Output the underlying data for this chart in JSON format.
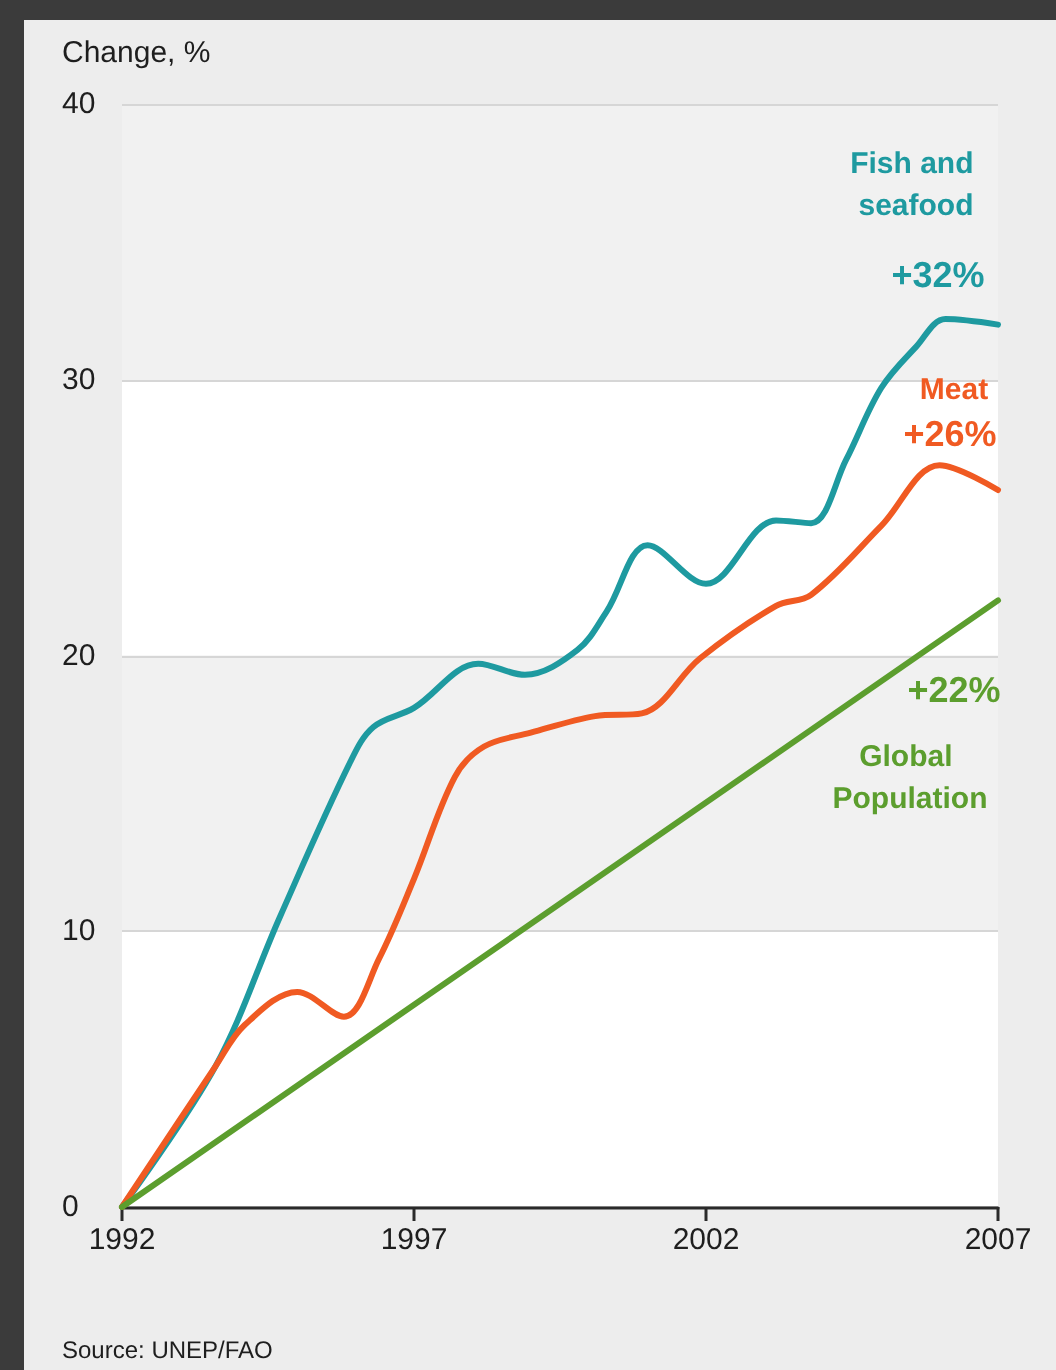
{
  "chart_data": {
    "type": "line",
    "ylabel": "Change, %",
    "xlim": [
      1992,
      2007
    ],
    "xticks": [
      1992,
      1997,
      2002,
      2007
    ],
    "ylim": [
      0,
      40
    ],
    "yticks": [
      0,
      10,
      20,
      30,
      40
    ],
    "grid": "y",
    "annotations": [
      "Source: UNEP/FAO"
    ],
    "series": [
      {
        "name": "Fish and seafood",
        "color": "#1e9aa0",
        "x": [
          1992,
          1993.6,
          1994.7,
          1995.9,
          1996.3,
          1997,
          1998.1,
          1998.9,
          1999.8,
          2000.3,
          2001,
          2002,
          2003.2,
          2003.8,
          2004.4,
          2005,
          2005.6,
          2006.1,
          2007
        ],
        "values": [
          0,
          5.1,
          10.5,
          16.1,
          17.4,
          18.1,
          19.7,
          19.3,
          20.2,
          21.6,
          24,
          22.6,
          24.9,
          24.8,
          27.1,
          29.7,
          31.2,
          32.2,
          32
        ],
        "value_labels": [
          null,
          null,
          null,
          null,
          null,
          null,
          null,
          null,
          null,
          null,
          null,
          null,
          null,
          null,
          null,
          null,
          null,
          null,
          "+32%"
        ]
      },
      {
        "name": "Meat",
        "color": "#f05a22",
        "x": [
          1992,
          1993.6,
          1994.1,
          1995,
          1995.8,
          1996.4,
          1997,
          1997.7,
          1998.2,
          1999,
          2000.1,
          2000.9,
          2001.9,
          2003.2,
          2003.8,
          2005,
          2006,
          2007
        ],
        "values": [
          0,
          5.1,
          6.6,
          7.8,
          6.9,
          9,
          11.9,
          15.6,
          16.7,
          17.2,
          17.8,
          17.9,
          19.9,
          21.8,
          22.2,
          24.7,
          26.9,
          26
        ],
        "value_labels": [
          null,
          null,
          null,
          null,
          null,
          null,
          null,
          null,
          null,
          null,
          null,
          null,
          null,
          null,
          null,
          null,
          null,
          "+26%"
        ]
      },
      {
        "name": "Global Population",
        "color": "#5c9e2e",
        "x": [
          1992,
          2007
        ],
        "values": [
          0,
          22
        ],
        "value_labels": [
          null,
          "+22%"
        ]
      }
    ]
  }
}
